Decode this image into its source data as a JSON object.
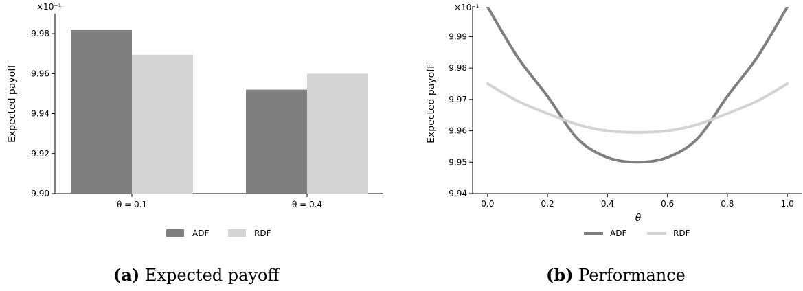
{
  "colors": {
    "adf": "#7f7f7f",
    "rdf": "#d3d3d3",
    "axis": "#000000"
  },
  "captions": [
    {
      "label": "(a)",
      "text": "Expected payoff"
    },
    {
      "label": "(b)",
      "text": "Performance"
    }
  ],
  "chart_data": [
    {
      "type": "bar",
      "ylabel": "Expected payoff",
      "xlabel": "",
      "scale_label": "×10⁻¹",
      "categories": [
        "θ = 0.1",
        "θ = 0.4"
      ],
      "ylim": [
        9.9,
        9.99
      ],
      "yticks": [
        9.9,
        9.92,
        9.94,
        9.96,
        9.98
      ],
      "ytick_labels": [
        "9.90",
        "9.92",
        "9.94",
        "9.96",
        "9.98"
      ],
      "series": [
        {
          "name": "ADF",
          "values": [
            9.982,
            9.952
          ]
        },
        {
          "name": "RDF",
          "values": [
            9.9695,
            9.96
          ]
        }
      ],
      "legend": "bottom-center",
      "grid": false
    },
    {
      "type": "line",
      "ylabel": "Expected payoff",
      "xlabel": "θ",
      "scale_label": "×10⁻¹",
      "xlim": [
        -0.05,
        1.05
      ],
      "ylim": [
        9.94,
        9.9995
      ],
      "xticks": [
        0.0,
        0.2,
        0.4,
        0.6,
        0.8,
        1.0
      ],
      "xtick_labels": [
        "0.0",
        "0.2",
        "0.4",
        "0.6",
        "0.8",
        "1.0"
      ],
      "yticks": [
        9.94,
        9.95,
        9.96,
        9.97,
        9.98,
        9.99
      ],
      "ytick_labels": [
        "9.94",
        "9.95",
        "9.96",
        "9.97",
        "9.98",
        "9.99"
      ],
      "series": [
        {
          "name": "ADF",
          "x": [
            0.0,
            0.1,
            0.2,
            0.3,
            0.4,
            0.5,
            0.6,
            0.7,
            0.8,
            0.9,
            1.0
          ],
          "y": [
            9.9995,
            9.9835,
            9.971,
            9.9575,
            9.9515,
            9.95,
            9.9515,
            9.9575,
            9.971,
            9.9835,
            9.9995
          ]
        },
        {
          "name": "RDF",
          "x": [
            0.0,
            0.1,
            0.2,
            0.3,
            0.4,
            0.5,
            0.6,
            0.7,
            0.8,
            0.9,
            1.0
          ],
          "y": [
            9.975,
            9.9695,
            9.9655,
            9.962,
            9.96,
            9.9595,
            9.96,
            9.962,
            9.9655,
            9.9695,
            9.975
          ]
        }
      ],
      "legend": "bottom-center",
      "grid": false
    }
  ]
}
